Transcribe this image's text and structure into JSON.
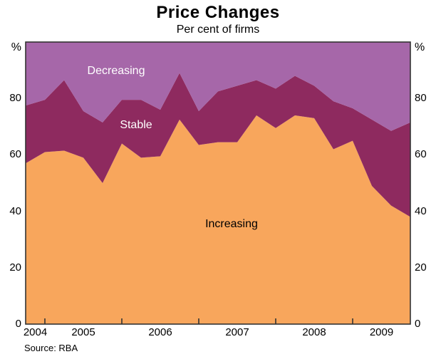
{
  "chart_data": {
    "type": "area",
    "stacked": true,
    "stack_total": 100,
    "title": "Price Changes",
    "subtitle": "Per cent of firms",
    "unit": "%",
    "source": "Source: RBA",
    "ylim": [
      0,
      100
    ],
    "yticks": [
      0,
      20,
      40,
      60,
      80
    ],
    "grid": false,
    "legend": "labels-inside-areas",
    "x_frequency": "quarterly",
    "x": [
      "Sep-04",
      "Dec-04",
      "Mar-05",
      "Jun-05",
      "Sep-05",
      "Dec-05",
      "Mar-06",
      "Jun-06",
      "Sep-06",
      "Dec-06",
      "Mar-07",
      "Jun-07",
      "Sep-07",
      "Dec-07",
      "Mar-08",
      "Jun-08",
      "Sep-08",
      "Dec-08",
      "Mar-09",
      "Jun-09",
      "Sep-09"
    ],
    "x_year_labels": [
      "2004",
      "2005",
      "2006",
      "2007",
      "2008",
      "2009"
    ],
    "year_tick_indices": [
      1,
      5,
      9,
      13,
      17
    ],
    "axis_color": "#333333",
    "series": [
      {
        "name": "Increasing",
        "color": "#F8A65C",
        "label_text_color": "#000000",
        "values": [
          57,
          61,
          61.5,
          59,
          50,
          64,
          59,
          59.5,
          72.5,
          63.5,
          64.5,
          64.5,
          74,
          69.5,
          74,
          73,
          62,
          65,
          49,
          42,
          38
        ]
      },
      {
        "name": "Stable",
        "color": "#8E2A5F",
        "label_text_color": "#FFFFFF",
        "values": [
          20.5,
          18.5,
          25,
          16.5,
          21.5,
          15.5,
          20.5,
          16.5,
          16.5,
          12,
          18,
          20,
          12.5,
          14,
          14,
          11.5,
          17,
          11.5,
          23.5,
          26.5,
          33.5
        ]
      },
      {
        "name": "Decreasing",
        "color": "#A667A9",
        "label_text_color": "#FFFFFF",
        "values": [
          22.5,
          20.5,
          13.5,
          24.5,
          28.5,
          20.5,
          20.5,
          24,
          11,
          24.5,
          17.5,
          15.5,
          13.5,
          16.5,
          12,
          15.5,
          21,
          23.5,
          27.5,
          31.5,
          28.5
        ]
      }
    ]
  }
}
